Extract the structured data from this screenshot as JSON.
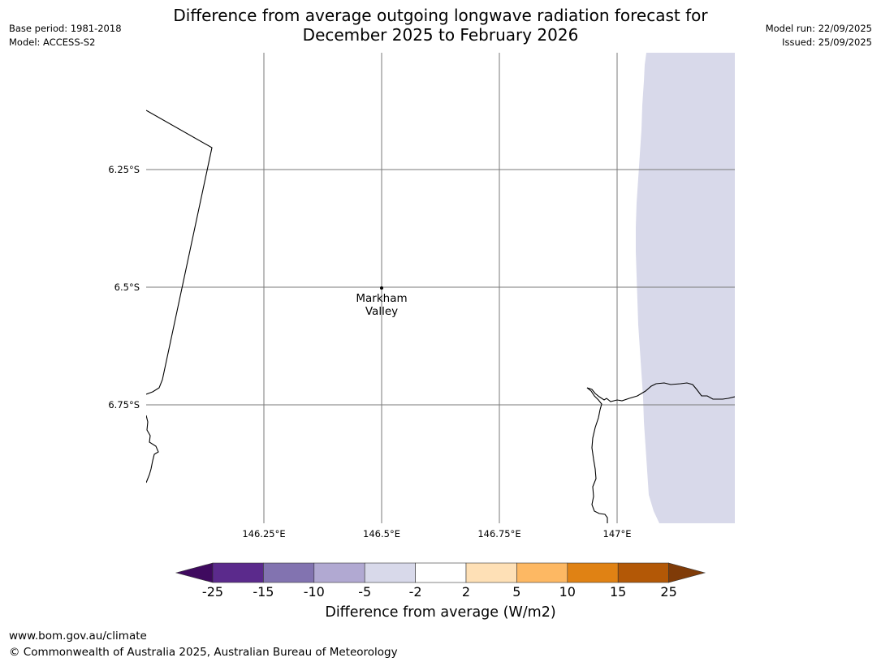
{
  "header": {
    "base_period": "Base period: 1981-2018",
    "model": "Model: ACCESS-S2",
    "model_run": "Model run: 22/09/2025",
    "issued": "Issued: 25/09/2025"
  },
  "title": {
    "line1": "Difference from average outgoing longwave radiation forecast for",
    "line2": "December 2025 to February 2026"
  },
  "map": {
    "lat_labels": [
      "6.25°S",
      "6.5°S",
      "6.75°S"
    ],
    "lon_labels": [
      "146.25°E",
      "146.5°E",
      "146.75°E",
      "147°E"
    ],
    "place": {
      "line1": "Markham",
      "line2": "Valley"
    },
    "anomaly_fill_color": "#d8d9ea"
  },
  "colorbar": {
    "ticks": [
      "-25",
      "-15",
      "-10",
      "-5",
      "-2",
      "2",
      "5",
      "10",
      "15",
      "25"
    ],
    "colors": [
      "#3f0a5f",
      "#5b2a8c",
      "#8273b0",
      "#b1a9d2",
      "#d8d9ea",
      "#ffffff",
      "#fee0b6",
      "#fdb863",
      "#e08214",
      "#b35806",
      "#7f3b08"
    ],
    "label": "Difference from average (W/m2)"
  },
  "footer": {
    "url": "www.bom.gov.au/climate",
    "copyright": "© Commonwealth of Australia 2025, Australian Bureau of Meteorology"
  }
}
